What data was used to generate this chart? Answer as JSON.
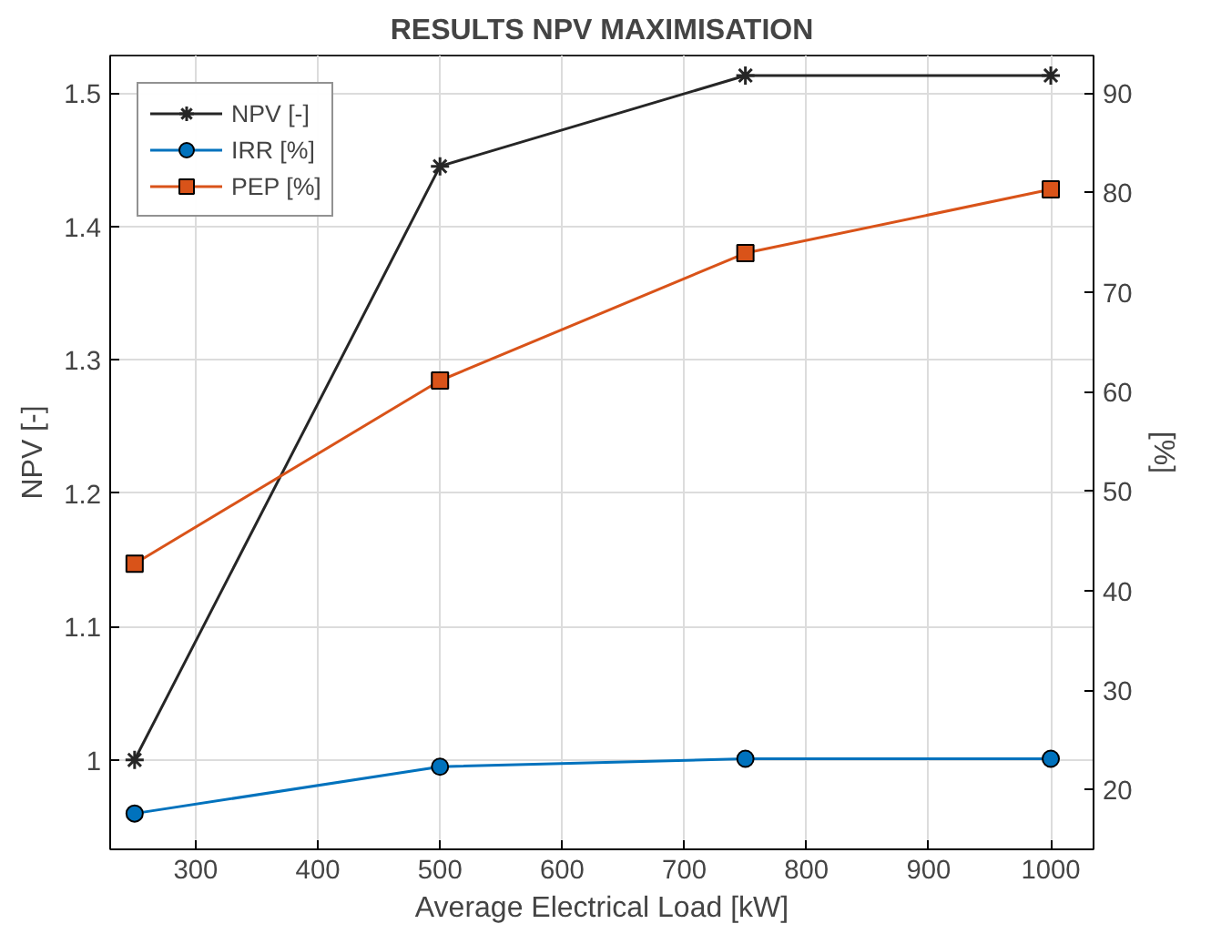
{
  "chart_data": {
    "type": "line",
    "title": "RESULTS NPV MAXIMISATION",
    "xlabel": "Average Electrical Load [kW]",
    "ylabel": "NPV [-]",
    "y2label": "[%]",
    "x": [
      250,
      500,
      750,
      1000
    ],
    "series": [
      {
        "name": "NPV [-]",
        "color": "#262626",
        "marker": "cross",
        "values": [
          1.0,
          1.445,
          1.513,
          1.513
        ]
      },
      {
        "name": "IRR [%]",
        "color": "#0072bd",
        "marker": "circle",
        "axis": "y2",
        "values": [
          17.6,
          22.3,
          23.1,
          23.1
        ]
      },
      {
        "name": "PEP [%]",
        "color": "#d95319",
        "marker": "square",
        "axis": "y2",
        "values": [
          42.7,
          61.1,
          73.9,
          80.3
        ]
      }
    ],
    "xlim": [
      230,
      1035
    ],
    "xticks": [
      300,
      400,
      500,
      600,
      700,
      800,
      900,
      1000
    ],
    "ylim": [
      0.933,
      1.528
    ],
    "yticks": [
      1,
      1.1,
      1.2,
      1.3,
      1.4,
      1.5
    ],
    "y2lim": [
      14,
      93.75
    ],
    "y2ticks": [
      20,
      30,
      40,
      50,
      60,
      70,
      80,
      90
    ],
    "grid": true,
    "legend": "top left",
    "line_style": "solid"
  }
}
